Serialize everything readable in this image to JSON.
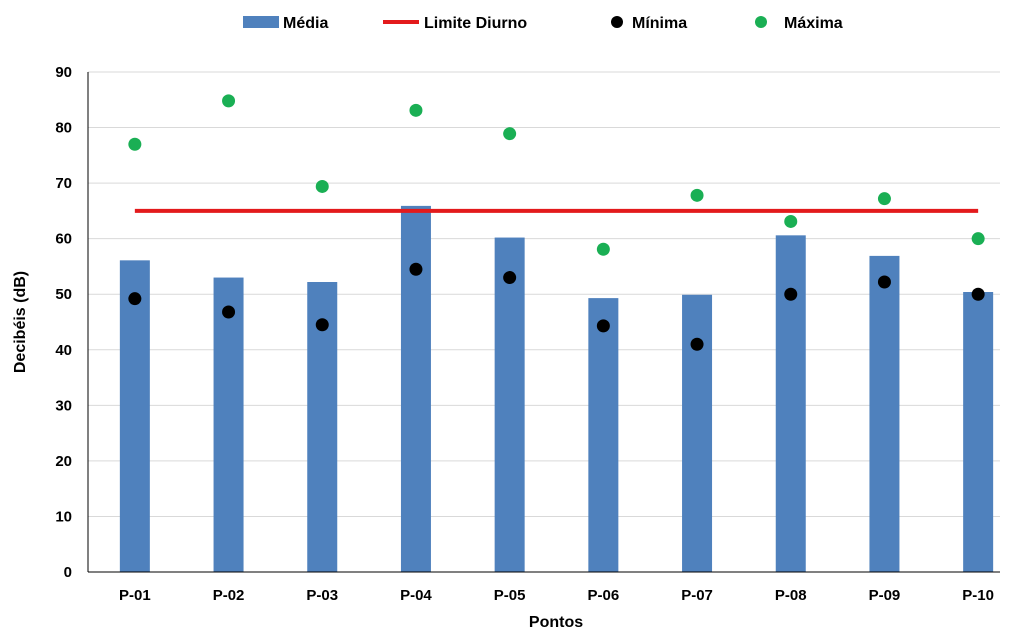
{
  "chart_data": {
    "type": "bar",
    "title": "",
    "xlabel": "Pontos",
    "ylabel": "Decibéis (dB)",
    "ylim": [
      0,
      90
    ],
    "yticks": [
      0,
      10,
      20,
      30,
      40,
      50,
      60,
      70,
      80,
      90
    ],
    "grid": "horizontal",
    "legend_position": "top",
    "categories": [
      "P-01",
      "P-02",
      "P-03",
      "P-04",
      "P-05",
      "P-06",
      "P-07",
      "P-08",
      "P-09",
      "P-10"
    ],
    "series": [
      {
        "name": "Média",
        "kind": "bar",
        "color": "#4f81bd",
        "values": [
          56.1,
          53.0,
          52.2,
          65.9,
          60.2,
          49.3,
          49.9,
          60.6,
          56.9,
          50.4
        ]
      },
      {
        "name": "Limite Diurno",
        "kind": "line",
        "color": "#e31a1c",
        "values": [
          65,
          65,
          65,
          65,
          65,
          65,
          65,
          65,
          65,
          65
        ]
      },
      {
        "name": "Mínima",
        "kind": "scatter",
        "color": "#000000",
        "values": [
          49.2,
          46.8,
          44.5,
          54.5,
          53.0,
          44.3,
          41.0,
          50.0,
          52.2,
          50.0
        ]
      },
      {
        "name": "Máxima",
        "kind": "scatter",
        "color": "#1aaf54",
        "values": [
          77.0,
          84.8,
          69.4,
          83.1,
          78.9,
          58.1,
          67.8,
          63.1,
          67.2,
          60.0
        ]
      }
    ]
  }
}
